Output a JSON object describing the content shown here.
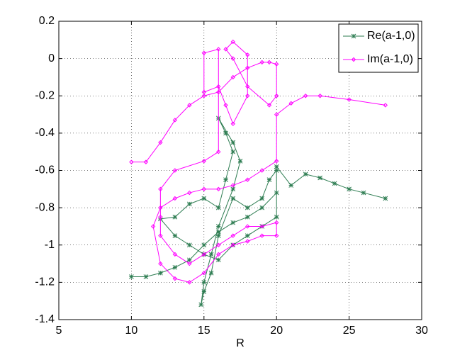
{
  "chart_data": {
    "type": "line",
    "x_label": "R",
    "xlim": [
      5,
      30
    ],
    "xticks": [
      5,
      10,
      15,
      20,
      25,
      30
    ],
    "ylim": [
      -1.4,
      0.2
    ],
    "yticks": [
      -1.4,
      -1.2,
      -1,
      -0.8,
      -0.6,
      -0.4,
      -0.2,
      0,
      0.2
    ],
    "grid": true,
    "legend": "top-right",
    "series": [
      {
        "name": "Re(a-1,0)",
        "color": "#2e7d52",
        "marker": "star",
        "x": [
          10,
          11,
          12,
          13,
          14,
          15,
          16,
          17,
          18,
          19,
          20,
          20,
          19.5,
          19,
          18,
          17,
          16,
          15.5,
          15,
          14.8,
          15,
          15.5,
          16,
          17,
          17.5,
          17,
          16,
          16.5,
          17,
          16.5,
          16,
          15,
          14,
          13,
          12,
          13,
          14,
          15,
          16,
          17,
          18,
          19,
          20,
          20,
          21,
          22,
          23,
          24,
          25,
          26,
          27.5
        ],
        "values": [
          -1.17,
          -1.17,
          -1.15,
          -1.12,
          -1.08,
          -1.0,
          -0.93,
          -0.88,
          -0.85,
          -0.8,
          -0.72,
          -0.6,
          -0.65,
          -0.75,
          -0.8,
          -0.75,
          -0.95,
          -1.15,
          -1.25,
          -1.32,
          -1.2,
          -1.05,
          -0.9,
          -0.7,
          -0.55,
          -0.45,
          -0.32,
          -0.4,
          -0.5,
          -0.65,
          -0.8,
          -0.75,
          -0.78,
          -0.85,
          -0.86,
          -0.95,
          -1.0,
          -1.05,
          -1.08,
          -1.0,
          -0.95,
          -0.9,
          -0.85,
          -0.58,
          -0.68,
          -0.62,
          -0.64,
          -0.67,
          -0.7,
          -0.72,
          -0.75
        ]
      },
      {
        "name": "Im(a-1,0)",
        "color": "#ff00ff",
        "marker": "diamond",
        "x": [
          10,
          11,
          12,
          13,
          14,
          15,
          16,
          17,
          18,
          19,
          19.5,
          20,
          20,
          19.5,
          18,
          17,
          16.5,
          17,
          18,
          18,
          17,
          16.5,
          16,
          15,
          15,
          16,
          16,
          15,
          13,
          12,
          12,
          12,
          13,
          14,
          15,
          16,
          17,
          18,
          19,
          20,
          20,
          19,
          18,
          17,
          16,
          15,
          14,
          13,
          12,
          11.5,
          12,
          13,
          14,
          15,
          16,
          17,
          18,
          19,
          20,
          20,
          21,
          22,
          23,
          25,
          27.5
        ],
        "values": [
          -0.555,
          -0.555,
          -0.45,
          -0.33,
          -0.25,
          -0.2,
          -0.18,
          -0.1,
          -0.05,
          -0.02,
          -0.02,
          -0.03,
          -0.2,
          -0.25,
          -0.15,
          0.0,
          0.05,
          0.09,
          0.02,
          -0.2,
          -0.35,
          -0.25,
          -0.15,
          -0.18,
          0.03,
          0.05,
          -0.5,
          -0.55,
          -0.6,
          -0.7,
          -0.85,
          -0.95,
          -1.05,
          -1.1,
          -1.05,
          -1.0,
          -0.95,
          -0.9,
          -0.9,
          -0.88,
          -0.95,
          -0.95,
          -0.98,
          -1.0,
          -1.05,
          -1.15,
          -1.2,
          -1.18,
          -1.1,
          -0.9,
          -0.8,
          -0.75,
          -0.72,
          -0.7,
          -0.7,
          -0.68,
          -0.65,
          -0.6,
          -0.55,
          -0.3,
          -0.24,
          -0.2,
          -0.2,
          -0.22,
          -0.25
        ]
      }
    ]
  }
}
